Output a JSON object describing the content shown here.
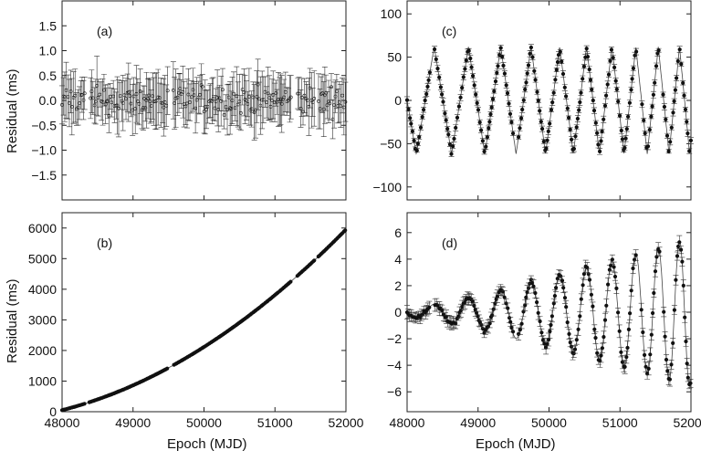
{
  "chart_data": [
    {
      "id": "a",
      "type": "scatter",
      "panel_label": "(a)",
      "ylabel": "Residual (ms)",
      "xlabel": "",
      "xlim": [
        48000,
        52000
      ],
      "ylim": [
        -2.0,
        2.0
      ],
      "xticks": [
        48000,
        49000,
        50000,
        51000,
        52000
      ],
      "yticks": [
        -1.5,
        -1.0,
        -0.5,
        0.0,
        0.5,
        1.0,
        1.5
      ],
      "ytick_labels": [
        "−1.5",
        "−1.0",
        "−0.5",
        "0.0",
        "0.5",
        "1.0",
        "1.5"
      ],
      "show_xtick_labels": false,
      "model": "white_noise",
      "noise_amplitude": 0.25,
      "error_bar": 0.4
    },
    {
      "id": "b",
      "type": "scatter",
      "panel_label": "(b)",
      "ylabel": "Residual (ms)",
      "xlabel": "Epoch (MJD)",
      "xlim": [
        48000,
        52000
      ],
      "ylim": [
        0,
        6500
      ],
      "xticks": [
        48000,
        49000,
        50000,
        51000,
        52000
      ],
      "yticks": [
        0,
        1000,
        2000,
        3000,
        4000,
        5000,
        6000
      ],
      "ytick_labels": [
        "0",
        "1000",
        "2000",
        "3000",
        "4000",
        "5000",
        "6000"
      ],
      "show_xtick_labels": true,
      "model": "quadratic",
      "start_value": 50,
      "end_value": 5950,
      "curvature": 0.6
    },
    {
      "id": "c",
      "type": "scatter",
      "panel_label": "(c)",
      "ylabel": "",
      "xlabel": "",
      "xlim": [
        48000,
        52000
      ],
      "ylim": [
        -115,
        115
      ],
      "xticks": [
        48000,
        49000,
        50000,
        51000,
        52000
      ],
      "yticks": [
        -100,
        -50,
        0,
        50,
        100
      ],
      "ytick_labels": [
        "−100",
        "−50",
        "0",
        "50",
        "100"
      ],
      "show_xtick_labels": false,
      "model": "triangle_wave",
      "amplitude": 62,
      "period_start": 520,
      "period_end": 280,
      "error_bar": 3
    },
    {
      "id": "d",
      "type": "scatter",
      "panel_label": "(d)",
      "ylabel": "",
      "xlabel": "Epoch (MJD)",
      "xlim": [
        48000,
        52000
      ],
      "ylim": [
        -7.5,
        7.5
      ],
      "xticks": [
        48000,
        49000,
        50000,
        51000,
        52000
      ],
      "yticks": [
        -6,
        -4,
        -2,
        0,
        2,
        4,
        6
      ],
      "ytick_labels": [
        "−6",
        "−4",
        "−2",
        "0",
        "2",
        "4",
        "6"
      ],
      "show_xtick_labels": true,
      "model": "growing_oscillation",
      "amplitude_start": 0.3,
      "amplitude_end": 5.6,
      "period_start": 520,
      "period_end": 280,
      "error_bar": 0.4
    }
  ]
}
